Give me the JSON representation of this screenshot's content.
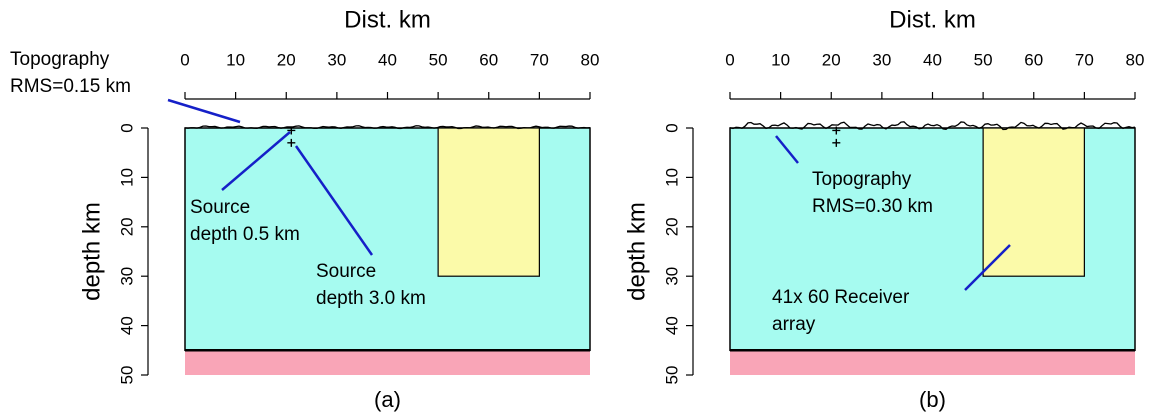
{
  "chart_data": [
    {
      "type": "model",
      "panel_label": "(a)",
      "xlabel": "Dist. km",
      "ylabel": "depth km",
      "xlim": [
        0,
        80
      ],
      "xticks": [
        0,
        10,
        20,
        30,
        40,
        50,
        60,
        70,
        80
      ],
      "ylim": [
        0,
        50
      ],
      "yticks": [
        0,
        10,
        20,
        30,
        40,
        50
      ],
      "y_inverted": true,
      "layers": [
        {
          "top": 0,
          "bottom": 45,
          "color": "#a6fbf0"
        },
        {
          "top": 45,
          "bottom": 50,
          "color": "#f9a5b7"
        }
      ],
      "block": {
        "x": [
          50,
          70
        ],
        "depth": [
          0,
          30
        ],
        "color": "#fbfaa9"
      },
      "sources": [
        {
          "x": 21,
          "depth": 0.5
        },
        {
          "x": 21,
          "depth": 3.0
        }
      ],
      "annotations": [
        [
          "Topography",
          "RMS=0.15 km"
        ],
        [
          "Source",
          "depth 0.5 km"
        ],
        [
          "Source",
          "depth 3.0 km"
        ]
      ]
    },
    {
      "type": "model",
      "panel_label": "(b)",
      "xlabel": "Dist. km",
      "ylabel": "depth km",
      "xlim": [
        0,
        80
      ],
      "xticks": [
        0,
        10,
        20,
        30,
        40,
        50,
        60,
        70,
        80
      ],
      "ylim": [
        0,
        50
      ],
      "yticks": [
        0,
        10,
        20,
        30,
        40,
        50
      ],
      "y_inverted": true,
      "layers": [
        {
          "top": 0,
          "bottom": 45,
          "color": "#a6fbf0"
        },
        {
          "top": 45,
          "bottom": 50,
          "color": "#f9a5b7"
        }
      ],
      "block": {
        "x": [
          50,
          70
        ],
        "depth": [
          0,
          30
        ],
        "color": "#fbfaa9"
      },
      "sources": [
        {
          "x": 21,
          "depth": 0.5
        },
        {
          "x": 21,
          "depth": 3.0
        }
      ],
      "annotations": [
        [
          "Topography",
          "RMS=0.30 km"
        ],
        [
          "41x 60 Receiver",
          "array"
        ]
      ]
    }
  ]
}
